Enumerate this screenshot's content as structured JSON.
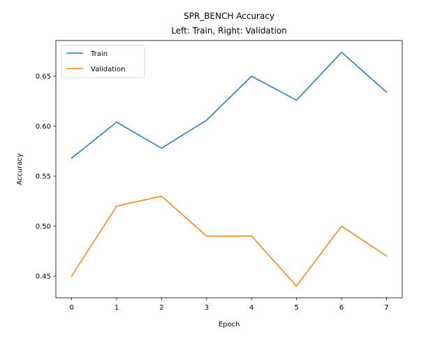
{
  "chart_data": {
    "type": "line",
    "title": "SPR_BENCH Accuracy",
    "subtitle": "Left: Train, Right: Validation",
    "xlabel": "Epoch",
    "ylabel": "Accuracy",
    "x": [
      0,
      1,
      2,
      3,
      4,
      5,
      6,
      7
    ],
    "xlim": [
      -0.35,
      7.35
    ],
    "ylim": [
      0.4283,
      0.6857
    ],
    "xticks": [
      "0",
      "1",
      "2",
      "3",
      "4",
      "5",
      "6",
      "7"
    ],
    "yticks": [
      "0.45",
      "0.50",
      "0.55",
      "0.60",
      "0.65"
    ],
    "grid": false,
    "legend_position": "upper left",
    "series": [
      {
        "name": "Train",
        "color": "#1f77b4",
        "values": [
          0.568,
          0.604,
          0.578,
          0.606,
          0.65,
          0.626,
          0.674,
          0.634
        ]
      },
      {
        "name": "Validation",
        "color": "#ff7f0e",
        "values": [
          0.45,
          0.52,
          0.53,
          0.49,
          0.49,
          0.44,
          0.5,
          0.47
        ]
      }
    ]
  }
}
